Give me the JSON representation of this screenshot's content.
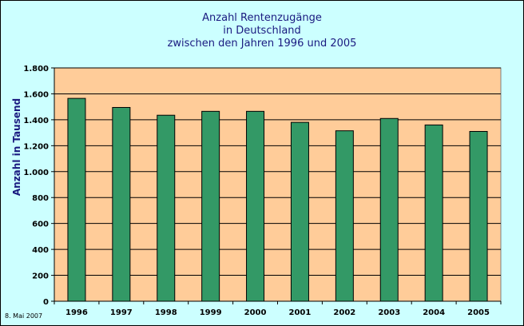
{
  "chart_data": {
    "type": "bar",
    "title_lines": [
      "Anzahl Rentenzugänge",
      "in Deutschland",
      "zwischen den Jahren 1996 und 2005"
    ],
    "xlabel": "",
    "ylabel": "Anzahl in Tausend",
    "categories": [
      "1996",
      "1997",
      "1998",
      "1999",
      "2000",
      "2001",
      "2002",
      "2003",
      "2004",
      "2005"
    ],
    "values": [
      1565,
      1495,
      1435,
      1465,
      1465,
      1380,
      1315,
      1410,
      1360,
      1310
    ],
    "ylim": [
      0,
      1800
    ],
    "yticks": [
      0,
      200,
      400,
      600,
      800,
      1000,
      1200,
      1400,
      1600,
      1800
    ],
    "ytick_labels": [
      "0",
      "200",
      "400",
      "600",
      "800",
      "1.000",
      "1.200",
      "1.400",
      "1.600",
      "1.800"
    ],
    "grid": true,
    "legend": "none",
    "colors": {
      "bar": "#339966",
      "plot_background": "#ffcc99",
      "outer_background": "#ccffff",
      "title": "#1a1a80",
      "grid": "#000000"
    }
  },
  "footer": {
    "date": "8. Mai 2007"
  }
}
